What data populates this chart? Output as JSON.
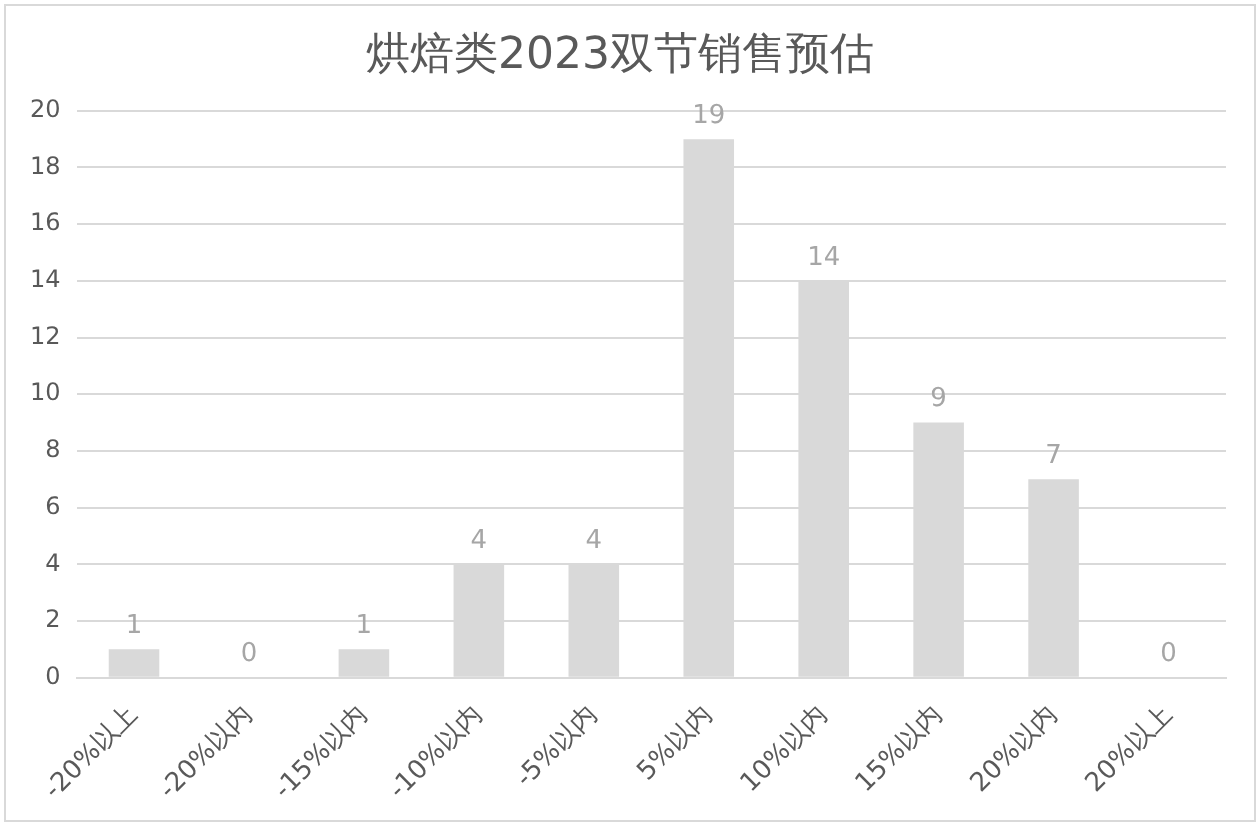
{
  "chart_data": {
    "type": "bar",
    "title": "烘焙类2023双节销售预估",
    "categories": [
      "-20%以上",
      "-20%以内",
      "-15%以内",
      "-10%以内",
      "-5%以内",
      "5%以内",
      "10%以内",
      "15%以内",
      "20%以内",
      "20%以上"
    ],
    "values": [
      1,
      0,
      1,
      4,
      4,
      19,
      14,
      9,
      7,
      0
    ],
    "color": "#d9d9d9",
    "ylim": [
      0,
      20
    ],
    "yticks": [
      0,
      2,
      4,
      6,
      8,
      10,
      12,
      14,
      16,
      18,
      20
    ],
    "grid": "y",
    "data_labels": true,
    "legend": false
  }
}
